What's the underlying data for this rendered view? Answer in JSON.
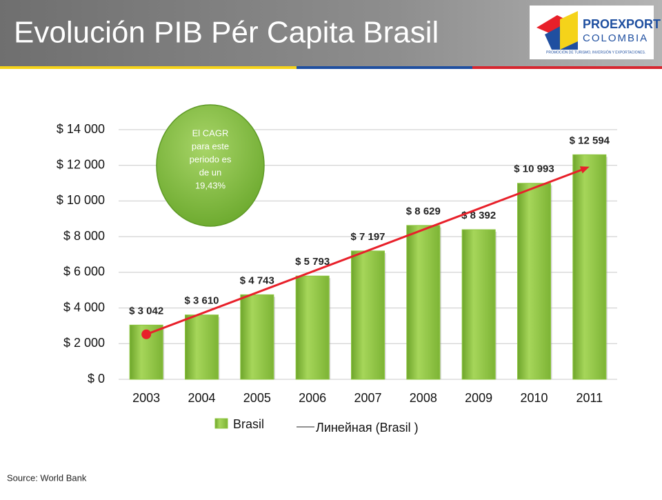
{
  "chart_data": {
    "type": "bar",
    "title": "Evolución PIB Pér Capita Brasil",
    "logo": {
      "name": "PROEXPORT",
      "subname": "COLOMBIA",
      "tagline": "PROMOCIÓN DE TURISMO, INVERSIÓN Y EXPORTACIONES."
    },
    "categories": [
      "2003",
      "2004",
      "2005",
      "2006",
      "2007",
      "2008",
      "2009",
      "2010",
      "2011"
    ],
    "series": [
      {
        "name": "Brasil",
        "color": "#8cc63f",
        "values": [
          3042,
          3610,
          4743,
          5793,
          7197,
          8629,
          8392,
          10993,
          12594
        ],
        "value_labels": [
          "$ 3 042",
          "$ 3 610",
          "$ 4 743",
          "$ 5 793",
          "$ 7 197",
          "$ 8 629",
          "$ 8 392",
          "$ 10 993",
          "$ 12 594"
        ]
      }
    ],
    "trendline": {
      "name": "Линейная (Brasil )",
      "color": "#e8202a"
    },
    "ylim": [
      0,
      14000
    ],
    "yticks": [
      {
        "value": 0,
        "label": "$ 0"
      },
      {
        "value": 2000,
        "label": "$ 2 000"
      },
      {
        "value": 4000,
        "label": "$ 4 000"
      },
      {
        "value": 6000,
        "label": "$ 6 000"
      },
      {
        "value": 8000,
        "label": "$ 8 000"
      },
      {
        "value": 10000,
        "label": "$ 10 000"
      },
      {
        "value": 12000,
        "label": "$ 12 000"
      },
      {
        "value": 14000,
        "label": "$ 14 000"
      }
    ],
    "grid": true,
    "annotation": [
      "El CAGR",
      "para este",
      "periodo es",
      "de un",
      "19,43%"
    ],
    "source": "Source: World Bank"
  }
}
